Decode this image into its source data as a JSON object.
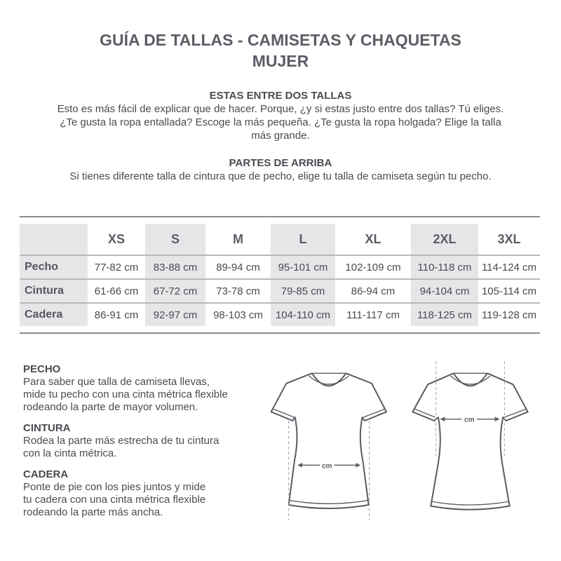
{
  "title_line1": "GUÍA DE TALLAS - CAMISETAS Y CHAQUETAS",
  "title_line2": "MUJER",
  "between_sizes": {
    "heading": "ESTAS ENTRE DOS TALLAS",
    "line1": "Esto es más fácil de explicar que de hacer. Porque, ¿y si estas justo entre dos tallas? Tú eliges.",
    "line2": "¿Te gusta la ropa entallada? Escoge la más pequeña. ¿Te gusta la ropa holgada? Elige la talla",
    "line3": "más grande."
  },
  "tops": {
    "heading": "PARTES DE ARRIBA",
    "text": "Si tienes diferente talla de cintura que de pecho, elige tu talla de camiseta según tu pecho."
  },
  "table": {
    "sizes": [
      "XS",
      "S",
      "M",
      "L",
      "XL",
      "2XL",
      "3XL"
    ],
    "rows": [
      {
        "label": "Pecho",
        "values": [
          "77-82 cm",
          "83-88 cm",
          "89-94 cm",
          "95-101 cm",
          "102-109 cm",
          "110-118 cm",
          "114-124 cm"
        ]
      },
      {
        "label": "Cintura",
        "values": [
          "61-66 cm",
          "67-72 cm",
          "73-78 cm",
          "79-85 cm",
          "86-94 cm",
          "94-104 cm",
          "105-114 cm"
        ]
      },
      {
        "label": "Cadera",
        "values": [
          "86-91 cm",
          "92-97 cm",
          "98-103 cm",
          "104-110 cm",
          "111-117 cm",
          "118-125 cm",
          "119-128 cm"
        ]
      }
    ]
  },
  "measure": [
    {
      "heading": "PECHO",
      "lines": [
        "Para saber que talla de camiseta llevas,",
        "mide tu pecho con una cinta métrica flexible",
        "rodeando la parte de mayor volumen."
      ]
    },
    {
      "heading": "CINTURA",
      "lines": [
        "Rodea la parte más estrecha de tu cintura",
        "con la cinta métrica."
      ]
    },
    {
      "heading": "CADERA",
      "lines": [
        "Ponte de pie con los pies juntos y mide",
        "tu cadera con una cinta métrica flexible",
        "rodeando la parte más ancha."
      ]
    }
  ],
  "diagram": {
    "unit_label_hip": "cm",
    "unit_label_chest": "cm",
    "line_color": "#5a5a62",
    "guide_color": "#a0a0a6"
  }
}
